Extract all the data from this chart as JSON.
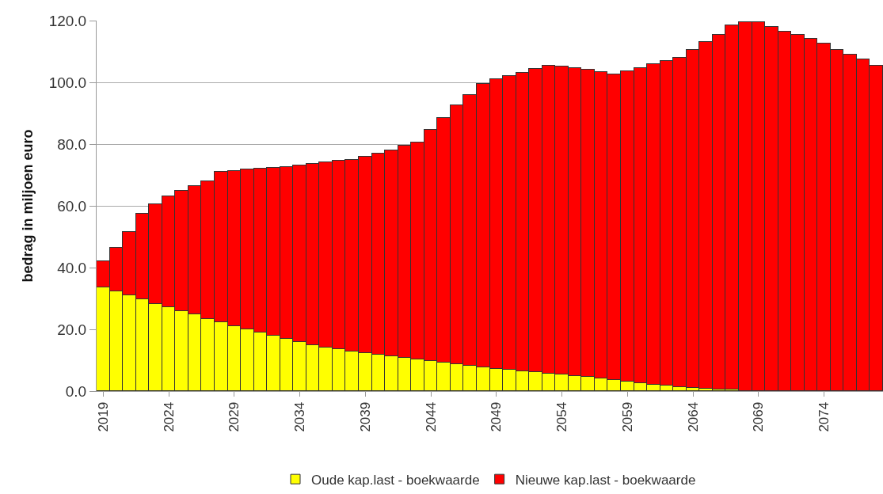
{
  "chart_data": {
    "type": "bar",
    "stacked": true,
    "ylabel": "bedrag in miljoen euro",
    "x": [
      2019,
      2020,
      2021,
      2022,
      2023,
      2024,
      2025,
      2026,
      2027,
      2028,
      2029,
      2030,
      2031,
      2032,
      2033,
      2034,
      2035,
      2036,
      2037,
      2038,
      2039,
      2040,
      2041,
      2042,
      2043,
      2044,
      2045,
      2046,
      2047,
      2048,
      2049,
      2050,
      2051,
      2052,
      2053,
      2054,
      2055,
      2056,
      2057,
      2058,
      2059,
      2060,
      2061,
      2062,
      2063,
      2064,
      2065,
      2066,
      2067,
      2068,
      2069,
      2070,
      2071,
      2072,
      2073,
      2074,
      2075,
      2076,
      2077,
      2078
    ],
    "series": [
      {
        "name": "Oude kap.last - boekwaarde",
        "color": "#ffff00",
        "values": [
          33.7,
          32.2,
          31.0,
          29.8,
          28.3,
          27.2,
          26.0,
          24.8,
          23.3,
          22.2,
          21.0,
          20.0,
          19.0,
          18.0,
          17.0,
          16.0,
          15.0,
          14.2,
          13.5,
          12.8,
          12.2,
          11.8,
          11.3,
          10.8,
          10.3,
          9.8,
          9.3,
          8.8,
          8.3,
          7.8,
          7.3,
          6.9,
          6.5,
          6.1,
          5.7,
          5.3,
          4.9,
          4.5,
          4.1,
          3.6,
          3.1,
          2.6,
          2.1,
          1.7,
          1.3,
          1.0,
          0.8,
          0.6,
          0.4,
          null,
          0.1,
          0,
          0,
          0,
          0,
          0,
          0,
          0,
          0,
          0
        ]
      },
      {
        "name": "Nieuwe kap.last - boekwaarde",
        "color": "#ff0000",
        "values": [
          8.3,
          14.3,
          20.5,
          27.7,
          32.2,
          35.8,
          39.0,
          41.7,
          44.7,
          48.8,
          50.3,
          51.7,
          53.0,
          54.3,
          55.5,
          57.0,
          58.5,
          59.8,
          61.0,
          62.2,
          63.8,
          65.2,
          66.7,
          68.7,
          70.2,
          74.7,
          79.2,
          83.7,
          87.7,
          91.7,
          93.7,
          95.1,
          96.7,
          98.2,
          99.8,
          99.9,
          99.6,
          99.5,
          99.2,
          98.9,
          100.4,
          101.9,
          103.9,
          105.3,
          106.7,
          109.5,
          112.2,
          114.9,
          118.1,
          119.6,
          119.4,
          118.0,
          116.5,
          115.5,
          114.0,
          112.5,
          110.5,
          109.0,
          107.5,
          105.5
        ]
      }
    ],
    "xlim": [
      2018.5,
      2078.5
    ],
    "xticks": [
      2019,
      2024,
      2029,
      2034,
      2039,
      2044,
      2049,
      2054,
      2059,
      2064,
      2069,
      2074
    ],
    "ylim": [
      0,
      120
    ],
    "yticks": [
      {
        "value": 0,
        "label": "0.0"
      },
      {
        "value": 20,
        "label": "20.0"
      },
      {
        "value": 40,
        "label": "40.0"
      },
      {
        "value": 60,
        "label": "60.0"
      },
      {
        "value": 80,
        "label": "80.0"
      },
      {
        "value": 100,
        "label": "100.0"
      },
      {
        "value": 120,
        "label": "120.0"
      }
    ],
    "grid": "y",
    "legend": "bottom"
  }
}
